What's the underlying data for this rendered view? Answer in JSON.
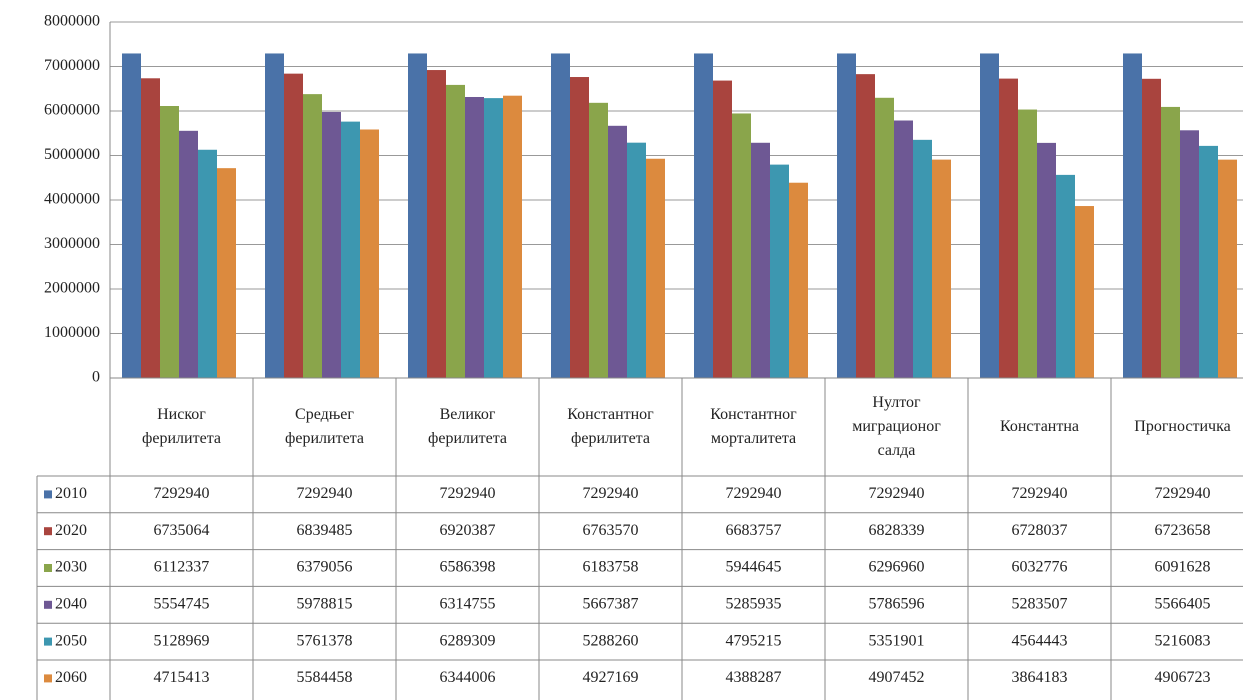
{
  "chart_data": {
    "type": "bar",
    "categories": [
      "Ниског\nферилитета",
      "Средњег\nферилитета",
      "Великог\nферилитета",
      "Константног\nферилитета",
      "Константног\nморталитета",
      "Нултог\nмиграционог\nсалда",
      "Константна",
      "Прогностичка"
    ],
    "series": [
      {
        "name": "2010",
        "color": "#4a72a8",
        "values": [
          7292940,
          7292940,
          7292940,
          7292940,
          7292940,
          7292940,
          7292940,
          7292940
        ]
      },
      {
        "name": "2020",
        "color": "#a9443e",
        "values": [
          6735064,
          6839485,
          6920387,
          6763570,
          6683757,
          6828339,
          6728037,
          6723658
        ]
      },
      {
        "name": "2030",
        "color": "#8aa54b",
        "values": [
          6112337,
          6379056,
          6586398,
          6183758,
          5944645,
          6296960,
          6032776,
          6091628
        ]
      },
      {
        "name": "2040",
        "color": "#6e5894",
        "values": [
          5554745,
          5978815,
          6314755,
          5667387,
          5285935,
          5786596,
          5283507,
          5566405
        ]
      },
      {
        "name": "2050",
        "color": "#3d97b0",
        "values": [
          5128969,
          5761378,
          6289309,
          5288260,
          4795215,
          5351901,
          4564443,
          5216083
        ]
      },
      {
        "name": "2060",
        "color": "#dc8a3e",
        "values": [
          4715413,
          5584458,
          6344006,
          4927169,
          4388287,
          4907452,
          3864183,
          4906723
        ]
      }
    ],
    "ylim": [
      0,
      8000000
    ],
    "yticks": [
      0,
      1000000,
      2000000,
      3000000,
      4000000,
      5000000,
      6000000,
      7000000,
      8000000
    ],
    "grid": true
  }
}
